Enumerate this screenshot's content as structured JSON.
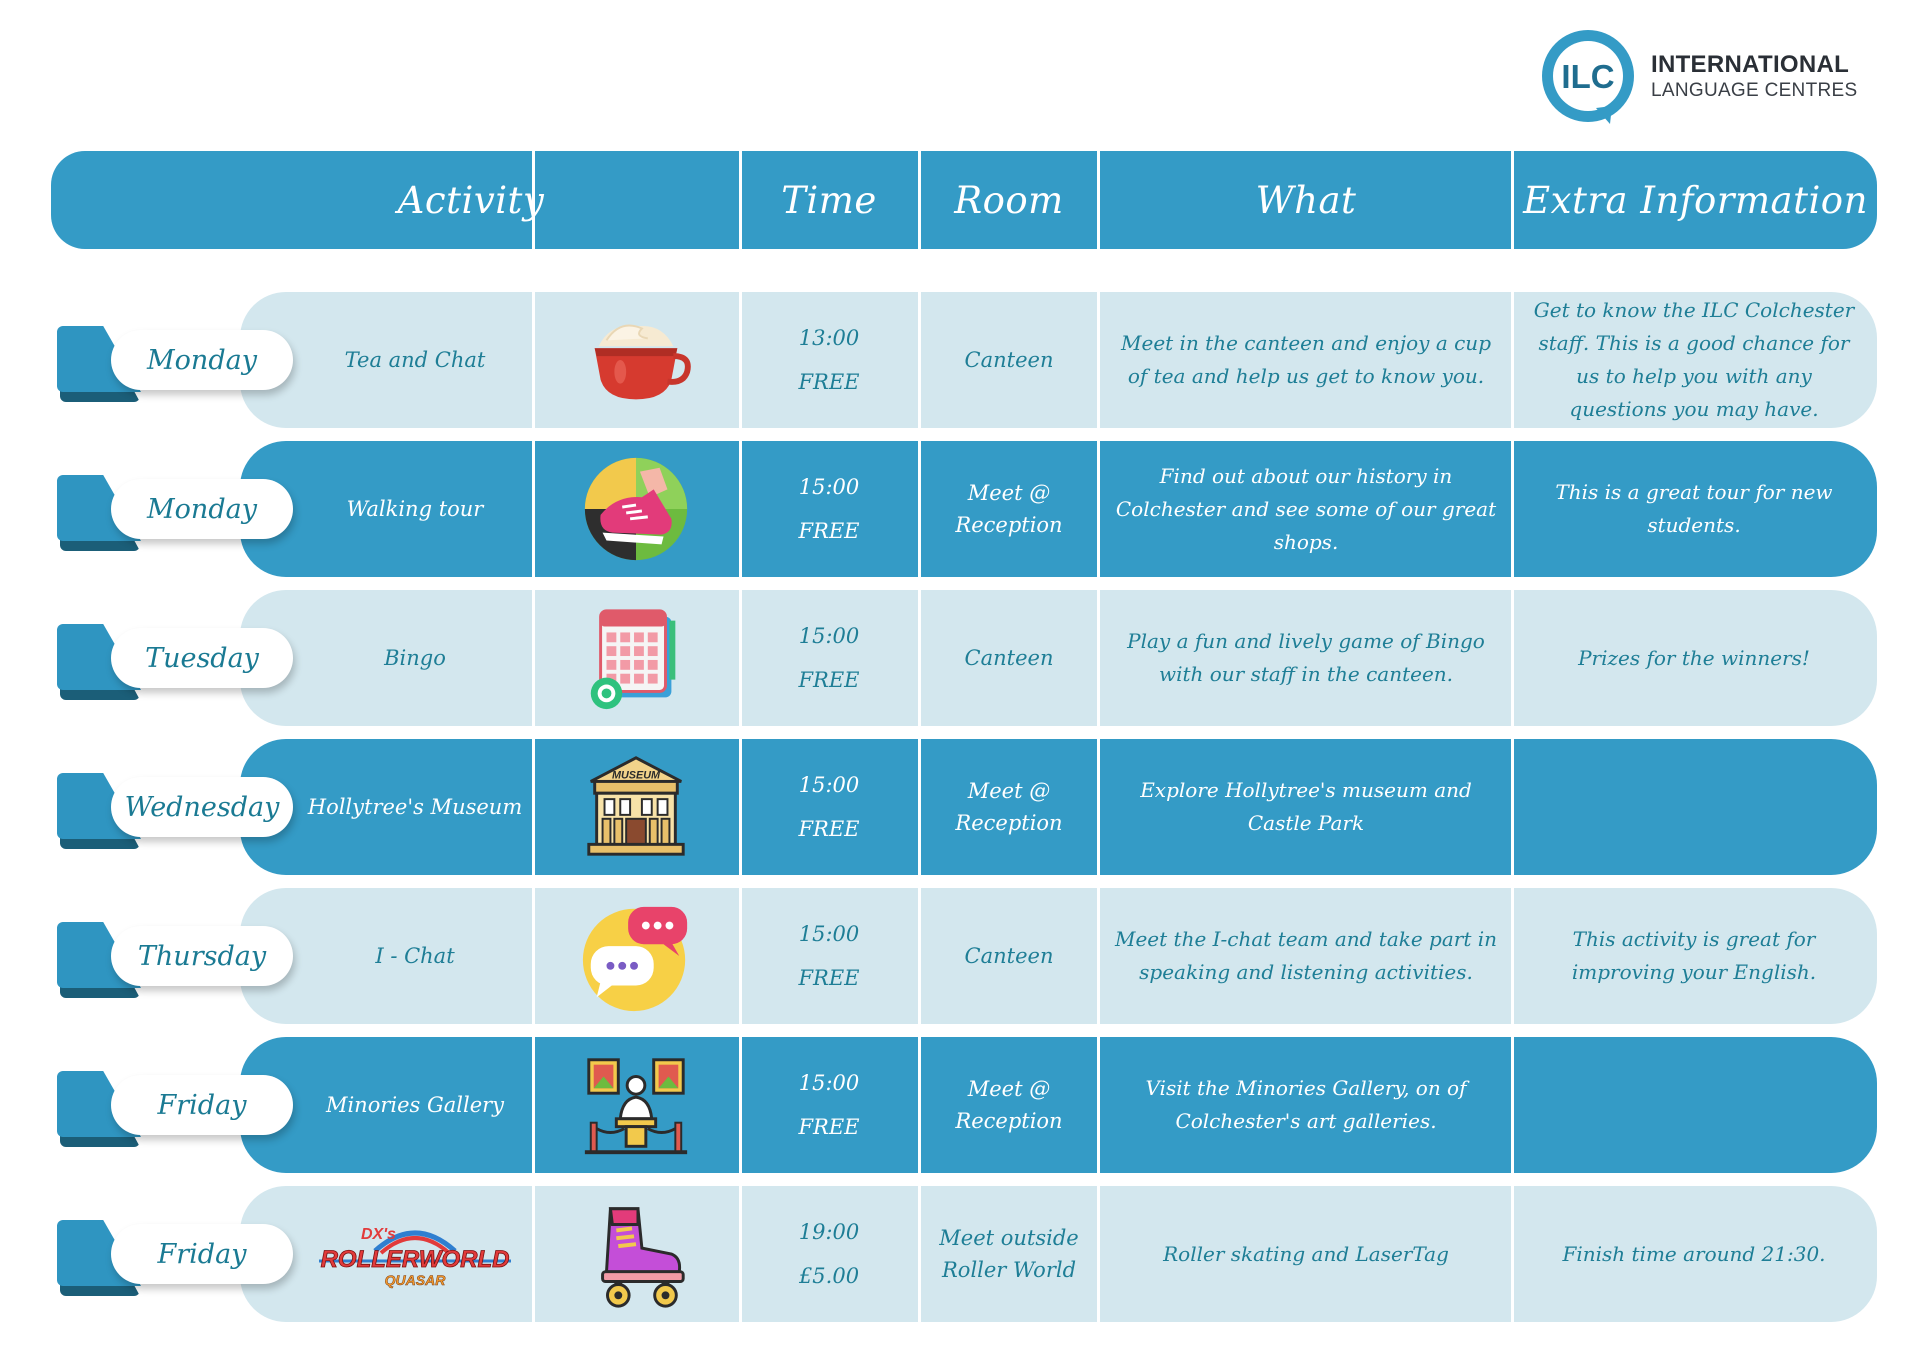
{
  "logo": {
    "mark_text": "ILC",
    "line1": "INTERNATIONAL",
    "line2": "LANGUAGE CENTRES",
    "color": "#349bc6"
  },
  "header": {
    "activity": "Activity",
    "icon": "",
    "time": "Time",
    "room": "Room",
    "what": "What",
    "extra": "Extra Information"
  },
  "colors": {
    "header_bar": "#349bc6",
    "light_row": "#d3e7ee",
    "dark_row": "#349bc6",
    "text_teal": "#1e7e96"
  },
  "rows": [
    {
      "day": "Monday",
      "activity": "Tea and Chat",
      "icon": "coffee-cup-icon",
      "time": "13:00",
      "price": "FREE",
      "room": "Canteen",
      "what": "Meet in the canteen and enjoy a cup of tea and help us get to know you.",
      "extra": "Get to know the ILC Colchester staff. This is a good chance for us to help you with any questions you may have.",
      "style": "light"
    },
    {
      "day": "Monday",
      "activity": "Walking tour",
      "icon": "walking-shoe-icon",
      "time": "15:00",
      "price": "FREE",
      "room": "Meet @ Reception",
      "what": "Find out about our history in Colchester and see some of our great shops.",
      "extra": "This is a great tour for new students.",
      "style": "dark"
    },
    {
      "day": "Tuesday",
      "activity": "Bingo",
      "icon": "bingo-card-icon",
      "time": "15:00",
      "price": "FREE",
      "room": "Canteen",
      "what": "Play a fun and lively game of Bingo with our staff in the canteen.",
      "extra": "Prizes for the winners!",
      "style": "light"
    },
    {
      "day": "Wednesday",
      "activity": "Hollytree's Museum",
      "icon": "museum-building-icon",
      "icon_label": "MUSEUM",
      "time": "15:00",
      "price": "FREE",
      "room": "Meet @ Reception",
      "what": "Explore Hollytree's museum and Castle Park",
      "extra": "",
      "style": "dark"
    },
    {
      "day": "Thursday",
      "activity": "I - Chat",
      "icon": "chat-bubbles-icon",
      "time": "15:00",
      "price": "FREE",
      "room": "Canteen",
      "what": "Meet the I-chat team and take part in speaking and listening activities.",
      "extra": "This activity is great for improving your English.",
      "style": "light"
    },
    {
      "day": "Friday",
      "activity": "Minories Gallery",
      "icon": "art-gallery-icon",
      "time": "15:00",
      "price": "FREE",
      "room": "Meet @ Reception",
      "what": "Visit the Minories Gallery, on of Colchester's art galleries.",
      "extra": "",
      "style": "dark"
    },
    {
      "day": "Friday",
      "activity": "",
      "activity_logo": {
        "top": "DX's",
        "main": "ROLLERWORLD",
        "sub": "QUASAR"
      },
      "icon": "roller-skate-icon",
      "time": "19:00",
      "price": "£5.00",
      "room": "Meet outside Roller World",
      "what": "Roller skating and LaserTag",
      "extra": "Finish time around 21:30.",
      "style": "light"
    }
  ]
}
